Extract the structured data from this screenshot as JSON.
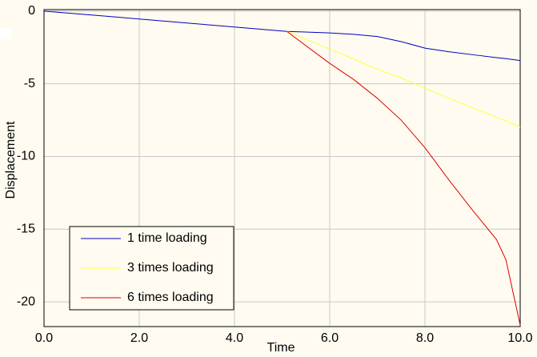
{
  "chart_data": {
    "type": "line",
    "x_label": "Time",
    "y_label": "Displacement",
    "x": [
      0,
      1,
      2,
      3,
      4,
      5.1,
      6,
      6.5,
      7,
      7.5,
      8,
      8.5,
      9,
      9.5,
      9.7,
      10
    ],
    "series": [
      {
        "name": "1 time loading",
        "color": "#0000c0",
        "values": [
          0,
          -0.27,
          -0.55,
          -0.82,
          -1.1,
          -1.4,
          -1.5,
          -1.6,
          -1.75,
          -2.1,
          -2.55,
          -2.8,
          -3.0,
          -3.2,
          -3.27,
          -3.4
        ]
      },
      {
        "name": "3 times loading",
        "color": "#ffff40",
        "values": [
          null,
          null,
          null,
          null,
          null,
          -1.4,
          -2.6,
          -3.3,
          -4.0,
          -4.6,
          -5.3,
          -6.0,
          -6.65,
          -7.3,
          -7.55,
          -8.0
        ]
      },
      {
        "name": "6 times loading",
        "color": "#e00000",
        "values": [
          null,
          null,
          null,
          null,
          null,
          -1.4,
          -3.6,
          -4.7,
          -6.0,
          -7.5,
          -9.4,
          -11.6,
          -13.7,
          -15.7,
          -17.1,
          -21.6
        ]
      }
    ],
    "xlim": [
      0,
      10
    ],
    "ylim": [
      -21.7,
      0.1
    ],
    "xticks": [
      {
        "value": 0,
        "label": "0.0"
      },
      {
        "value": 2,
        "label": "2.0"
      },
      {
        "value": 4,
        "label": "4.0"
      },
      {
        "value": 6,
        "label": "6.0"
      },
      {
        "value": 8,
        "label": "8.0"
      },
      {
        "value": 10,
        "label": "10.0"
      }
    ],
    "yticks": [
      0,
      -5,
      -10,
      -15,
      -20
    ],
    "grid": true,
    "legend": "lower-left"
  }
}
